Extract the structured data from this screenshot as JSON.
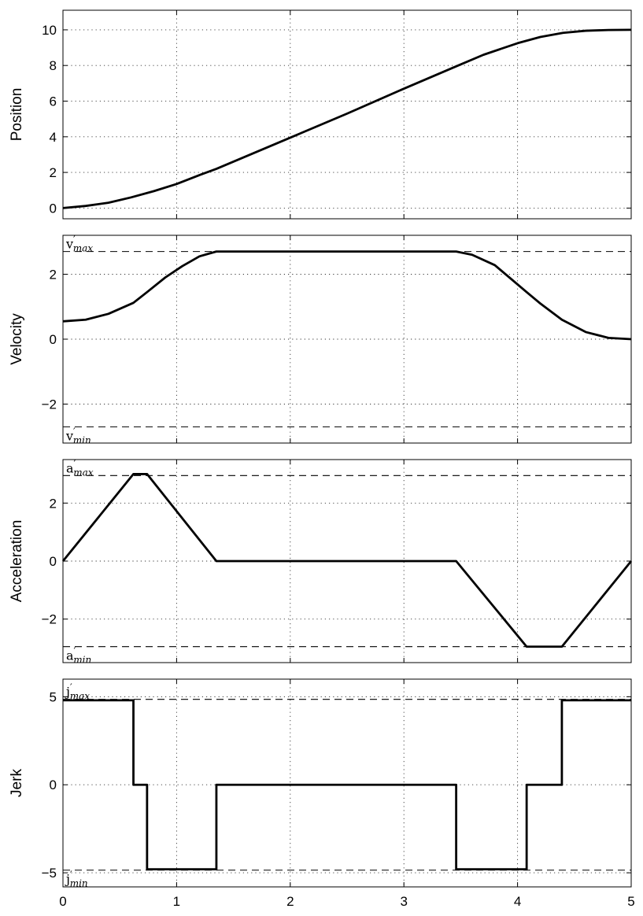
{
  "chart_data": [
    {
      "type": "line",
      "ylabel": "Position",
      "ylim": [
        -0.6,
        11.1
      ],
      "yticks": [
        0,
        2,
        4,
        6,
        8,
        10
      ],
      "ytick_labels": [
        "0",
        "2",
        "4",
        "6",
        "8",
        "10"
      ],
      "xlim": [
        0,
        5
      ],
      "show_xtick_labels": false,
      "grid": true,
      "series": [
        {
          "x": [
            0,
            0.2,
            0.4,
            0.6,
            0.8,
            1.0,
            1.2,
            1.35,
            2.0,
            2.5,
            3.0,
            3.46,
            3.7,
            4.0,
            4.2,
            4.4,
            4.6,
            4.8,
            5.0
          ],
          "y": [
            0,
            0.12,
            0.3,
            0.6,
            0.95,
            1.35,
            1.85,
            2.2,
            3.95,
            5.3,
            6.7,
            7.95,
            8.6,
            9.25,
            9.6,
            9.83,
            9.95,
            9.99,
            10.0
          ]
        }
      ],
      "bounds": []
    },
    {
      "type": "line",
      "ylabel": "Velocity",
      "ylim": [
        -3.2,
        3.2
      ],
      "yticks": [
        -2,
        0,
        2
      ],
      "ytick_labels": [
        "−2",
        "0",
        "2"
      ],
      "xlim": [
        0,
        5
      ],
      "show_xtick_labels": false,
      "grid": true,
      "series": [
        {
          "x": [
            0,
            0.2,
            0.4,
            0.62,
            0.74,
            0.9,
            1.05,
            1.2,
            1.35,
            2.0,
            3.0,
            3.46,
            3.6,
            3.8,
            4.08,
            4.2,
            4.39,
            4.6,
            4.8,
            5.0
          ],
          "y": [
            0.55,
            0.6,
            0.78,
            1.12,
            1.45,
            1.9,
            2.25,
            2.55,
            2.7,
            2.7,
            2.7,
            2.7,
            2.6,
            2.28,
            1.45,
            1.1,
            0.6,
            0.22,
            0.04,
            0.0
          ]
        }
      ],
      "bounds": [
        {
          "value": 2.7,
          "base": "v",
          "sub": "max"
        },
        {
          "value": -2.7,
          "base": "v",
          "sub": "min"
        }
      ]
    },
    {
      "type": "line",
      "ylabel": "Acceleration",
      "ylim": [
        -3.5,
        3.5
      ],
      "yticks": [
        -2,
        0,
        2
      ],
      "ytick_labels": [
        "−2",
        "0",
        "2"
      ],
      "xlim": [
        0,
        5
      ],
      "show_xtick_labels": false,
      "grid": true,
      "series": [
        {
          "x": [
            0,
            0.62,
            0.74,
            1.35,
            3.46,
            4.08,
            4.39,
            5.0
          ],
          "y": [
            0,
            3.0,
            3.0,
            0,
            0,
            -2.95,
            -2.95,
            0
          ]
        }
      ],
      "bounds": [
        {
          "value": 2.95,
          "base": "a",
          "sub": "max"
        },
        {
          "value": -2.95,
          "base": "a",
          "sub": "min"
        }
      ]
    },
    {
      "type": "line",
      "ylabel": "Jerk",
      "xlabel": "",
      "ylim": [
        -5.8,
        6.0
      ],
      "yticks": [
        -5,
        0,
        5
      ],
      "ytick_labels": [
        "−5",
        "0",
        "5"
      ],
      "xlim": [
        0,
        5
      ],
      "xticks": [
        0,
        1,
        2,
        3,
        4,
        5
      ],
      "xtick_labels": [
        "0",
        "1",
        "2",
        "3",
        "4",
        "5"
      ],
      "show_xtick_labels": true,
      "grid": true,
      "series": [
        {
          "x": [
            0,
            0.62,
            0.62,
            0.74,
            0.74,
            1.35,
            1.35,
            3.46,
            3.46,
            4.08,
            4.08,
            4.39,
            4.39,
            5.0
          ],
          "y": [
            4.8,
            4.8,
            0,
            0,
            -4.8,
            -4.8,
            0,
            0,
            -4.8,
            -4.8,
            0,
            0,
            4.8,
            4.8
          ]
        }
      ],
      "bounds": [
        {
          "value": 4.85,
          "base": "j",
          "sub": "max"
        },
        {
          "value": -4.85,
          "base": "j",
          "sub": "min"
        }
      ]
    }
  ]
}
